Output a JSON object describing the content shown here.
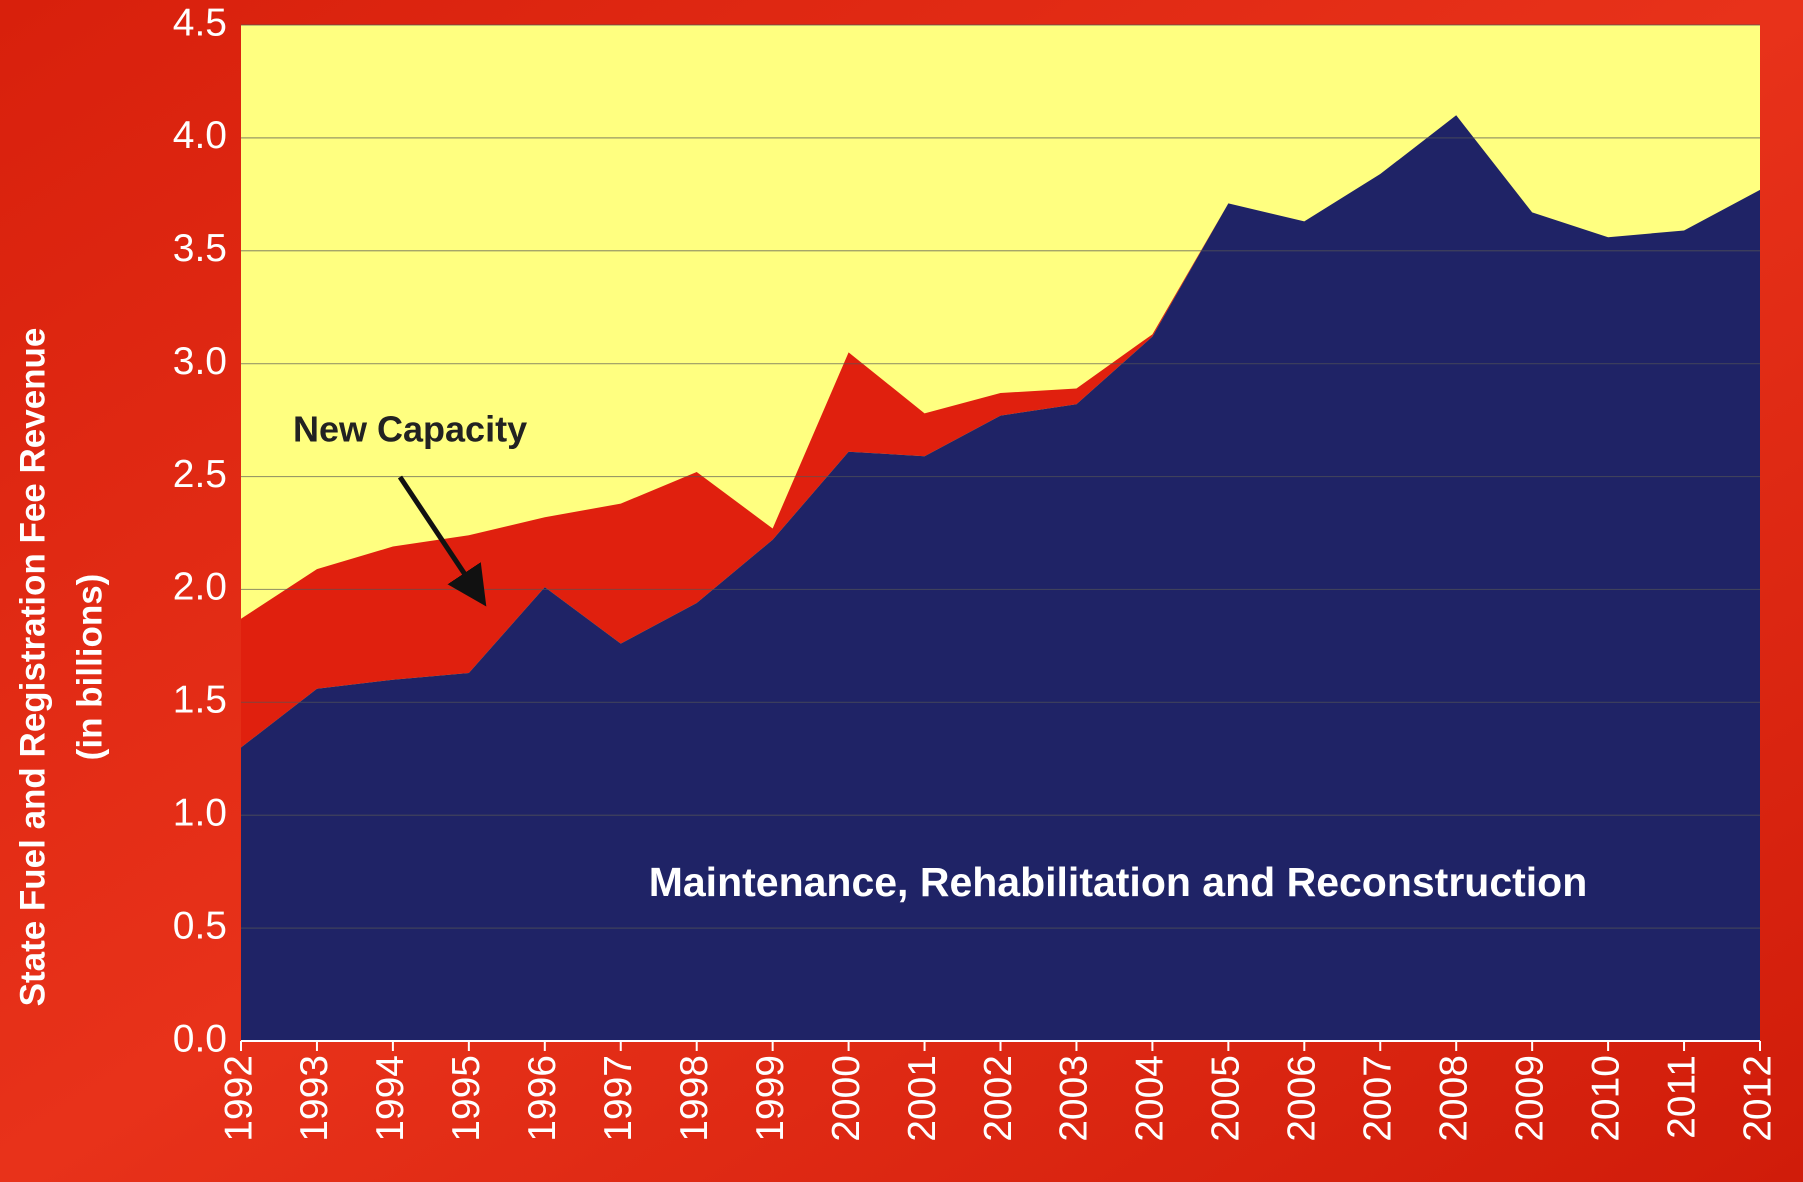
{
  "chart_data": {
    "type": "stacked-area",
    "y_label": [
      "State Fuel and Registration Fee Revenue",
      "(in billions)"
    ],
    "categories": [
      "1992",
      "1993",
      "1994",
      "1995",
      "1996",
      "1997",
      "1998",
      "1999",
      "2000",
      "2001",
      "2002",
      "2003",
      "2004",
      "2005",
      "2006",
      "2007",
      "2008",
      "2009",
      "2010",
      "2011",
      "2012"
    ],
    "series": [
      {
        "name": "Maintenance, Rehabilitation and Reconstruction",
        "color": "#1f2366",
        "values": [
          1.3,
          1.56,
          1.6,
          1.63,
          2.01,
          1.76,
          1.94,
          2.22,
          2.61,
          2.59,
          2.77,
          2.82,
          3.12,
          3.71,
          3.63,
          3.84,
          4.1,
          3.67,
          3.56,
          3.59,
          3.77
        ]
      },
      {
        "name": "New Capacity",
        "color": "#e0200e",
        "values": [
          0.57,
          0.53,
          0.59,
          0.61,
          0.31,
          0.62,
          0.58,
          0.05,
          0.44,
          0.19,
          0.1,
          0.07,
          0.01,
          0,
          0,
          0,
          0,
          0,
          0,
          0,
          0
        ]
      }
    ],
    "ylim": [
      0,
      4.5
    ],
    "yticks": [
      {
        "value": 0,
        "label": "0.0"
      },
      0.5,
      {
        "value": 1,
        "label": "1.0"
      },
      1.5,
      {
        "value": 2,
        "label": "2.0"
      },
      2.5,
      {
        "value": 3,
        "label": "3.0"
      },
      3.5,
      {
        "value": 4,
        "label": "4.0"
      },
      4.5
    ],
    "grid": true,
    "plot_background": "#ffff80"
  }
}
